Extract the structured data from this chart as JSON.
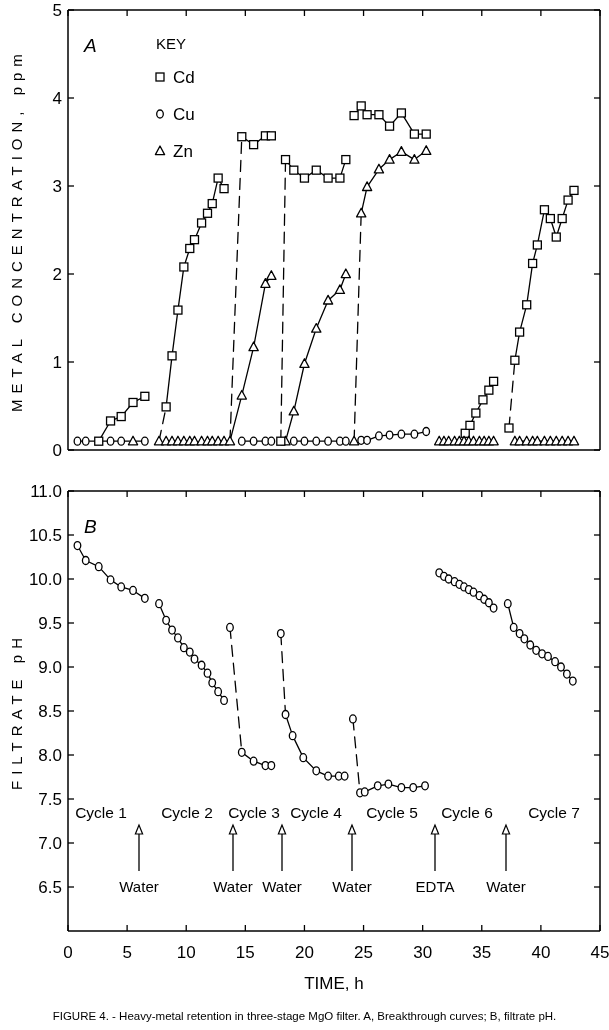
{
  "chart_data": [
    {
      "type": "line",
      "title": "A",
      "ylabel": "METAL CONCENTRATION, ppm",
      "legend_title": "KEY",
      "legend": "top left",
      "xlim": [
        0,
        45
      ],
      "xticks": [
        0,
        5,
        10,
        15,
        20,
        25,
        30,
        35,
        40,
        45
      ],
      "ylim": [
        0,
        5
      ],
      "yticks": [
        0,
        1,
        2,
        3,
        4,
        5
      ],
      "tick_labels": "y",
      "series": [
        {
          "color": "#000000",
          "line_style": "dashed",
          "x": [
            7.7,
            8.3
          ],
          "values": [
            0.1,
            0.49
          ]
        },
        {
          "color": "#000000",
          "line_style": "dashed",
          "x": [
            13.7,
            14.7
          ],
          "values": [
            0.1,
            3.56
          ]
        },
        {
          "color": "#000000",
          "line_style": "solid",
          "x": [
            13.7,
            14.7
          ],
          "values": [
            0.1,
            0.62
          ]
        },
        {
          "color": "#000000",
          "line_style": "dashed",
          "x": [
            18.0,
            18.4
          ],
          "values": [
            0.1,
            3.3
          ]
        },
        {
          "color": "#000000",
          "line_style": "dashed",
          "x": [
            24.2,
            24.8
          ],
          "values": [
            0.1,
            2.69
          ]
        },
        {
          "color": "#000000",
          "line_style": "dashed",
          "x": [
            37.3,
            37.8
          ],
          "values": [
            0.25,
            1.02
          ]
        },
        {
          "name": "Cd",
          "color": "#000000",
          "marker": "square",
          "line_style": "solid",
          "x": [
            2.6,
            3.6,
            4.5,
            5.5,
            6.5
          ],
          "values": [
            0.1,
            0.33,
            0.38,
            0.54,
            0.61
          ]
        },
        {
          "color": "#000000",
          "marker": "square",
          "line_style": "solid",
          "x": [
            8.3,
            8.8,
            9.3,
            9.8,
            10.3,
            10.7,
            11.3,
            11.8,
            12.2,
            12.7,
            13.2
          ],
          "values": [
            0.49,
            1.07,
            1.59,
            2.08,
            2.29,
            2.39,
            2.58,
            2.69,
            2.8,
            3.09,
            2.97
          ]
        },
        {
          "color": "#000000",
          "marker": "square",
          "line_style": "solid",
          "x": [
            14.7,
            15.7,
            16.7,
            17.2
          ],
          "values": [
            3.56,
            3.47,
            3.57,
            3.57
          ]
        },
        {
          "color": "#000000",
          "marker": "square",
          "line_style": "solid",
          "x": [
            18.4,
            19.1,
            20.0,
            21.0,
            22.0,
            23.0,
            23.5
          ],
          "values": [
            3.3,
            3.18,
            3.09,
            3.18,
            3.09,
            3.09,
            3.3
          ]
        },
        {
          "color": "#000000",
          "marker": "square",
          "line_style": "solid",
          "x": [
            24.2,
            24.8,
            25.3,
            26.3,
            27.2,
            28.2,
            29.3,
            30.3
          ],
          "values": [
            3.8,
            3.91,
            3.81,
            3.81,
            3.68,
            3.83,
            3.59,
            3.59
          ]
        },
        {
          "color": "#000000",
          "marker": "square",
          "line_style": "solid",
          "x": [
            33.6,
            34.0,
            34.5,
            35.1,
            35.6,
            36.0
          ],
          "values": [
            0.19,
            0.28,
            0.42,
            0.57,
            0.68,
            0.78
          ]
        },
        {
          "color": "#000000",
          "marker": "square",
          "line_style": "solid",
          "x": [
            37.8,
            38.2,
            38.8,
            39.3,
            39.7,
            40.3,
            40.8,
            41.3,
            41.8,
            42.3,
            42.8
          ],
          "values": [
            1.02,
            1.34,
            1.65,
            2.12,
            2.33,
            2.73,
            2.63,
            2.42,
            2.63,
            2.84,
            2.95
          ]
        },
        {
          "name": "Cu",
          "color": "#000000",
          "marker": "circle",
          "line_style": "solid",
          "x": [
            0.8,
            1.5,
            3.6,
            4.5,
            6.5
          ],
          "values": [
            0.1,
            0.1,
            0.1,
            0.1,
            0.1
          ]
        },
        {
          "color": "#000000",
          "marker": "circle",
          "line_style": "solid",
          "x": [
            14.7,
            15.7,
            16.7,
            17.2
          ],
          "values": [
            0.1,
            0.1,
            0.1,
            0.1
          ]
        },
        {
          "color": "#000000",
          "marker": "circle",
          "line_style": "solid",
          "x": [
            19.1,
            20.0,
            21.0,
            22.0,
            23.0,
            23.5
          ],
          "values": [
            0.1,
            0.1,
            0.1,
            0.1,
            0.1,
            0.1
          ]
        },
        {
          "color": "#000000",
          "marker": "circle",
          "line_style": "solid",
          "x": [
            24.8,
            25.3,
            26.3,
            27.2,
            28.2,
            29.3,
            30.3
          ],
          "values": [
            0.11,
            0.11,
            0.16,
            0.17,
            0.18,
            0.18,
            0.21
          ]
        },
        {
          "name": "Zn",
          "type": "scatter",
          "color": "#000000",
          "marker": "triangle",
          "x": [
            7.7,
            8.3,
            8.8,
            9.3,
            9.8,
            10.3,
            10.7,
            11.3,
            11.8,
            12.2,
            12.7,
            13.2
          ],
          "values": [
            0.1,
            0.1,
            0.1,
            0.1,
            0.1,
            0.1,
            0.1,
            0.1,
            0.1,
            0.1,
            0.1,
            0.1
          ]
        },
        {
          "color": "#000000",
          "marker": "triangle",
          "line_style": "solid",
          "x": [
            14.7,
            15.7,
            16.7,
            17.2
          ],
          "values": [
            0.62,
            1.17,
            1.89,
            1.98
          ]
        },
        {
          "color": "#000000",
          "marker": "triangle",
          "line_style": "solid",
          "x": [
            18.4,
            19.1,
            20.0,
            21.0,
            22.0,
            23.0,
            23.5
          ],
          "values": [
            0.1,
            0.44,
            0.98,
            1.38,
            1.7,
            1.82,
            2.0
          ]
        },
        {
          "color": "#000000",
          "marker": "triangle",
          "line_style": "solid",
          "x": [
            24.8,
            25.3,
            26.3,
            27.2,
            28.2,
            29.3,
            30.3
          ],
          "values": [
            2.69,
            2.99,
            3.19,
            3.3,
            3.39,
            3.3,
            3.4
          ]
        },
        {
          "color": "#000000",
          "marker": "triangle",
          "line_style": "solid",
          "x": [
            37.8,
            38.2,
            38.8,
            39.3,
            39.7,
            40.3,
            40.8,
            41.3,
            41.8,
            42.3,
            42.8
          ],
          "values": [
            0.1,
            0.1,
            0.1,
            0.1,
            0.1,
            0.1,
            0.1,
            0.1,
            0.1,
            0.1,
            0.1
          ]
        },
        {
          "type": "scatter",
          "color": "#000000",
          "marker": "triangle",
          "x": [
            31.4,
            31.8,
            32.2,
            32.7,
            33.1,
            33.5,
            33.9,
            34.3,
            34.8,
            35.2,
            35.6,
            36.0
          ],
          "values": [
            0.1,
            0.1,
            0.1,
            0.1,
            0.1,
            0.1,
            0.1,
            0.1,
            0.1,
            0.1,
            0.1,
            0.1
          ]
        },
        {
          "type": "scatter",
          "color": "#000000",
          "marker": "square",
          "x": [
            18.0,
            37.3
          ],
          "values": [
            0.1,
            0.25
          ]
        },
        {
          "type": "scatter",
          "color": "#000000",
          "marker": "triangle",
          "x": [
            5.5,
            13.7,
            24.2
          ],
          "values": [
            0.1,
            0.1,
            0.1
          ]
        }
      ]
    },
    {
      "type": "line",
      "title": "B",
      "xlabel": "TIME, h",
      "ylabel": "FILTRATE pH",
      "xlim": [
        0,
        45
      ],
      "xticks": [
        0,
        5,
        10,
        15,
        20,
        25,
        30,
        35,
        40,
        45
      ],
      "ylim": [
        6,
        11
      ],
      "yticks": [
        6.5,
        {
          "value": 7,
          "label": "7.0"
        },
        7.5,
        {
          "value": 8,
          "label": "8.0"
        },
        8.5,
        {
          "value": 9,
          "label": "9.0"
        },
        9.5,
        {
          "value": 10,
          "label": "10.0"
        },
        10.5,
        {
          "value": 11,
          "label": "11.0"
        }
      ],
      "annotations": [
        "Cycle 1",
        "Cycle 2",
        "Cycle 3",
        "Cycle 4",
        "Cycle 5",
        "Cycle 6",
        "Cycle 7",
        "Water",
        "Water",
        "Water",
        "Water",
        "EDTA",
        "Water",
        "FIGURE 4. - Heavy-metal retention in three-stage MgO filter. A, Breakthrough curves; B, filtrate pH."
      ],
      "series": [
        {
          "color": "#000000",
          "line_style": "dashed",
          "x": [
            13.7,
            14.7
          ],
          "values": [
            9.45,
            8.03
          ]
        },
        {
          "color": "#000000",
          "line_style": "dashed",
          "x": [
            18.0,
            18.4
          ],
          "values": [
            9.38,
            8.46
          ]
        },
        {
          "color": "#000000",
          "line_style": "dashed",
          "x": [
            24.1,
            24.7
          ],
          "values": [
            8.41,
            7.57
          ]
        },
        {
          "color": "#000000",
          "marker": "circle",
          "line_style": "solid",
          "x": [
            0.8,
            1.5,
            2.6,
            3.6,
            4.5,
            5.5,
            6.5
          ],
          "values": [
            10.38,
            10.21,
            10.14,
            9.99,
            9.91,
            9.87,
            9.78
          ]
        },
        {
          "color": "#000000",
          "marker": "circle",
          "line_style": "solid",
          "x": [
            7.7,
            8.3,
            8.8,
            9.3,
            9.8,
            10.3,
            10.7,
            11.3,
            11.8,
            12.2,
            12.7,
            13.2
          ],
          "values": [
            9.72,
            9.53,
            9.42,
            9.33,
            9.22,
            9.17,
            9.09,
            9.02,
            8.93,
            8.82,
            8.72,
            8.62
          ]
        },
        {
          "color": "#000000",
          "marker": "circle",
          "line_style": "solid",
          "x": [
            14.7,
            15.7,
            16.7,
            17.2
          ],
          "values": [
            8.03,
            7.93,
            7.88,
            7.88
          ]
        },
        {
          "color": "#000000",
          "marker": "circle",
          "line_style": "solid",
          "x": [
            18.4,
            19.0,
            19.9,
            21.0,
            22.0,
            22.9,
            23.4
          ],
          "values": [
            8.46,
            8.22,
            7.97,
            7.82,
            7.76,
            7.76,
            7.76
          ]
        },
        {
          "color": "#000000",
          "marker": "circle",
          "line_style": "solid",
          "x": [
            24.7,
            25.1,
            26.2,
            27.1,
            28.2,
            29.2,
            30.2
          ],
          "values": [
            7.57,
            7.58,
            7.65,
            7.67,
            7.63,
            7.63,
            7.65
          ]
        },
        {
          "type": "scatter",
          "color": "#000000",
          "marker": "circle",
          "x": [
            31.4,
            31.8,
            32.2,
            32.7,
            33.1,
            33.5,
            33.9,
            34.3,
            34.8,
            35.2,
            35.6,
            36.0
          ],
          "values": [
            10.07,
            10.03,
            10.0,
            9.97,
            9.94,
            9.91,
            9.88,
            9.85,
            9.81,
            9.77,
            9.73,
            9.67
          ]
        },
        {
          "color": "#000000",
          "marker": "circle",
          "line_style": "solid",
          "x": [
            37.2,
            37.7,
            38.2,
            38.6,
            39.1,
            39.6,
            40.1,
            40.6,
            41.2,
            41.7,
            42.2,
            42.7
          ],
          "values": [
            9.72,
            9.45,
            9.38,
            9.32,
            9.25,
            9.19,
            9.15,
            9.12,
            9.06,
            9.0,
            8.92,
            8.84
          ]
        },
        {
          "type": "scatter",
          "color": "#000000",
          "marker": "circle",
          "x": [
            13.7,
            18.0,
            24.1
          ],
          "values": [
            9.45,
            9.38,
            8.41
          ]
        }
      ]
    }
  ]
}
